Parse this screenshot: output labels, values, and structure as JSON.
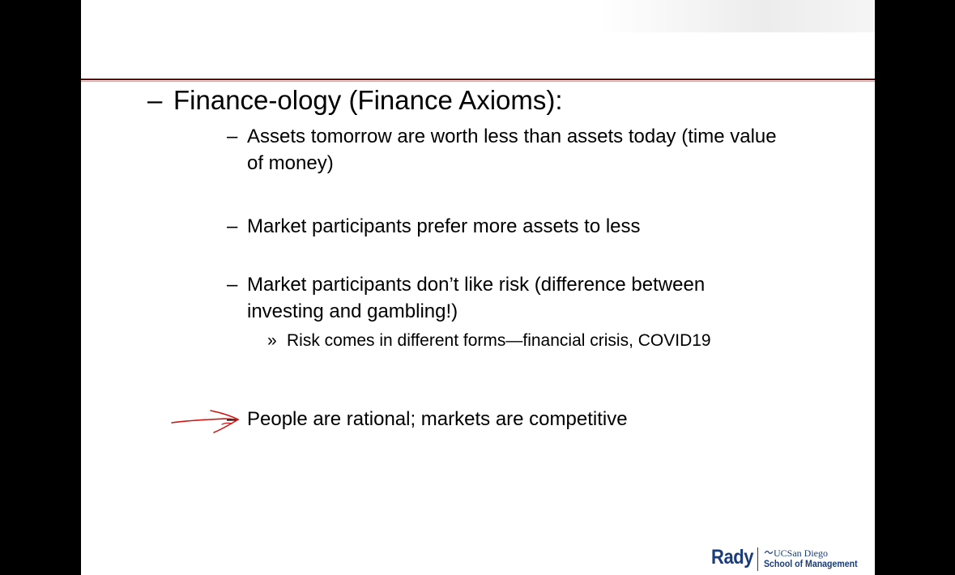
{
  "slide": {
    "heading": {
      "dash": "–",
      "text": "Finance-ology (Finance Axioms):"
    },
    "bullets": [
      {
        "dash": "–",
        "lines": [
          "Assets tomorrow are worth less than assets today (time value",
          "of money)"
        ]
      },
      {
        "dash": "–",
        "lines": [
          "Market participants prefer more assets to less"
        ]
      },
      {
        "dash": "–",
        "lines": [
          "Market participants don’t like risk (difference between",
          "investing and gambling!)"
        ],
        "sub": {
          "marker": "»",
          "text": "Risk comes in different forms—financial crisis, COVID19"
        }
      },
      {
        "dash": "–",
        "lines": [
          "People are rational; markets are competitive"
        ]
      }
    ],
    "annotation": {
      "icon": "red-hand-drawn-arrow-icon",
      "color": "#d01818"
    },
    "logo": {
      "primary": "Rady",
      "secondary": "UCSan Diego",
      "tertiary": "School of Management",
      "color": "#1a3c7a"
    }
  }
}
